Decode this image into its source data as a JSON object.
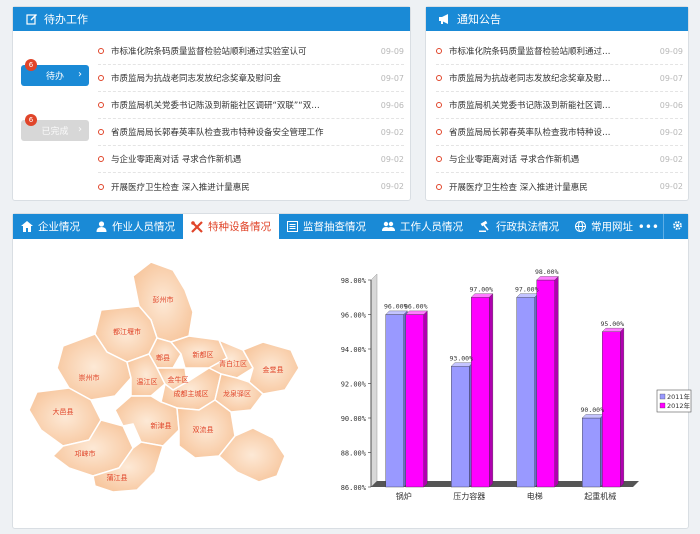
{
  "todo": {
    "title": "待办工作",
    "pending": {
      "label": "待办",
      "count": "6"
    },
    "done": {
      "label": "已完成",
      "count": "6"
    },
    "items": [
      {
        "title": "市标准化院条码质量监督检验站顺利通过实验室认可",
        "date": "09-09"
      },
      {
        "title": "市质监局为抗战老同志发放纪念奖章及慰问金",
        "date": "09-07"
      },
      {
        "title": "市质监局机关党委书记陈汲到新能社区调研“双联”“双…",
        "date": "09-06"
      },
      {
        "title": "省质监局局长郭春英率队检查我市特种设备安全管理工作",
        "date": "09-02"
      },
      {
        "title": "与企业零距离对话 寻求合作新机遇",
        "date": "09-02"
      },
      {
        "title": "开展医疗卫生检查 深入推进计量惠民",
        "date": "09-02"
      }
    ]
  },
  "notice": {
    "title": "通知公告",
    "items": [
      {
        "title": "市标准化院条码质量监督检验站顺利通过…",
        "date": "09-09"
      },
      {
        "title": "市质监局为抗战老同志发放纪念奖章及慰…",
        "date": "09-07"
      },
      {
        "title": "市质监局机关党委书记陈汲到新能社区调…",
        "date": "09-06"
      },
      {
        "title": "省质监局局长郭春英率队检查我市特种设…",
        "date": "09-02"
      },
      {
        "title": "与企业零距离对话 寻求合作新机遇",
        "date": "09-02"
      },
      {
        "title": "开展医疗卫生检查 深入推进计量惠民",
        "date": "09-02"
      }
    ]
  },
  "tabs": [
    {
      "label": "企业情况",
      "icon": "home-icon"
    },
    {
      "label": "作业人员情况",
      "icon": "user-icon"
    },
    {
      "label": "特种设备情况",
      "icon": "tools-icon",
      "active": true
    },
    {
      "label": "监督抽查情况",
      "icon": "list-icon"
    },
    {
      "label": "工作人员情况",
      "icon": "users-icon"
    },
    {
      "label": "行政执法情况",
      "icon": "gavel-icon"
    },
    {
      "label": "常用网址",
      "icon": "globe-icon"
    }
  ],
  "more": "•••",
  "map": {
    "districts": [
      "彭州市",
      "都江堰市",
      "郫县",
      "新都区",
      "崇州市",
      "温江区",
      "金牛区",
      "青白江区",
      "金堂县",
      "大邑县",
      "成都主城区",
      "龙泉驿区",
      "邛崃市",
      "新津县",
      "双流县",
      "蒲江县"
    ]
  },
  "chart_data": {
    "type": "bar",
    "categories": [
      "锅炉",
      "压力容器",
      "电梯",
      "起重机械"
    ],
    "series": [
      {
        "name": "2011年",
        "values": [
          96.0,
          93.0,
          97.0,
          90.0
        ],
        "labels": [
          "96.00%",
          "93.00%",
          "97.00%",
          "90.00%"
        ],
        "color": "#9999ff"
      },
      {
        "name": "2012年",
        "values": [
          96.0,
          97.0,
          98.0,
          95.0
        ],
        "labels": [
          "96.00%",
          "97.00%",
          "98.00%",
          "95.00%"
        ],
        "color": "#ff00ff"
      }
    ],
    "yticks": [
      "86.00%",
      "88.00%",
      "90.00%",
      "92.00%",
      "94.00%",
      "96.00%",
      "98.00%"
    ],
    "ylim": [
      86,
      98
    ],
    "legend": "right",
    "grid": false
  },
  "colors": {
    "accent": "#1a8ad6",
    "alert": "#e0452a"
  }
}
